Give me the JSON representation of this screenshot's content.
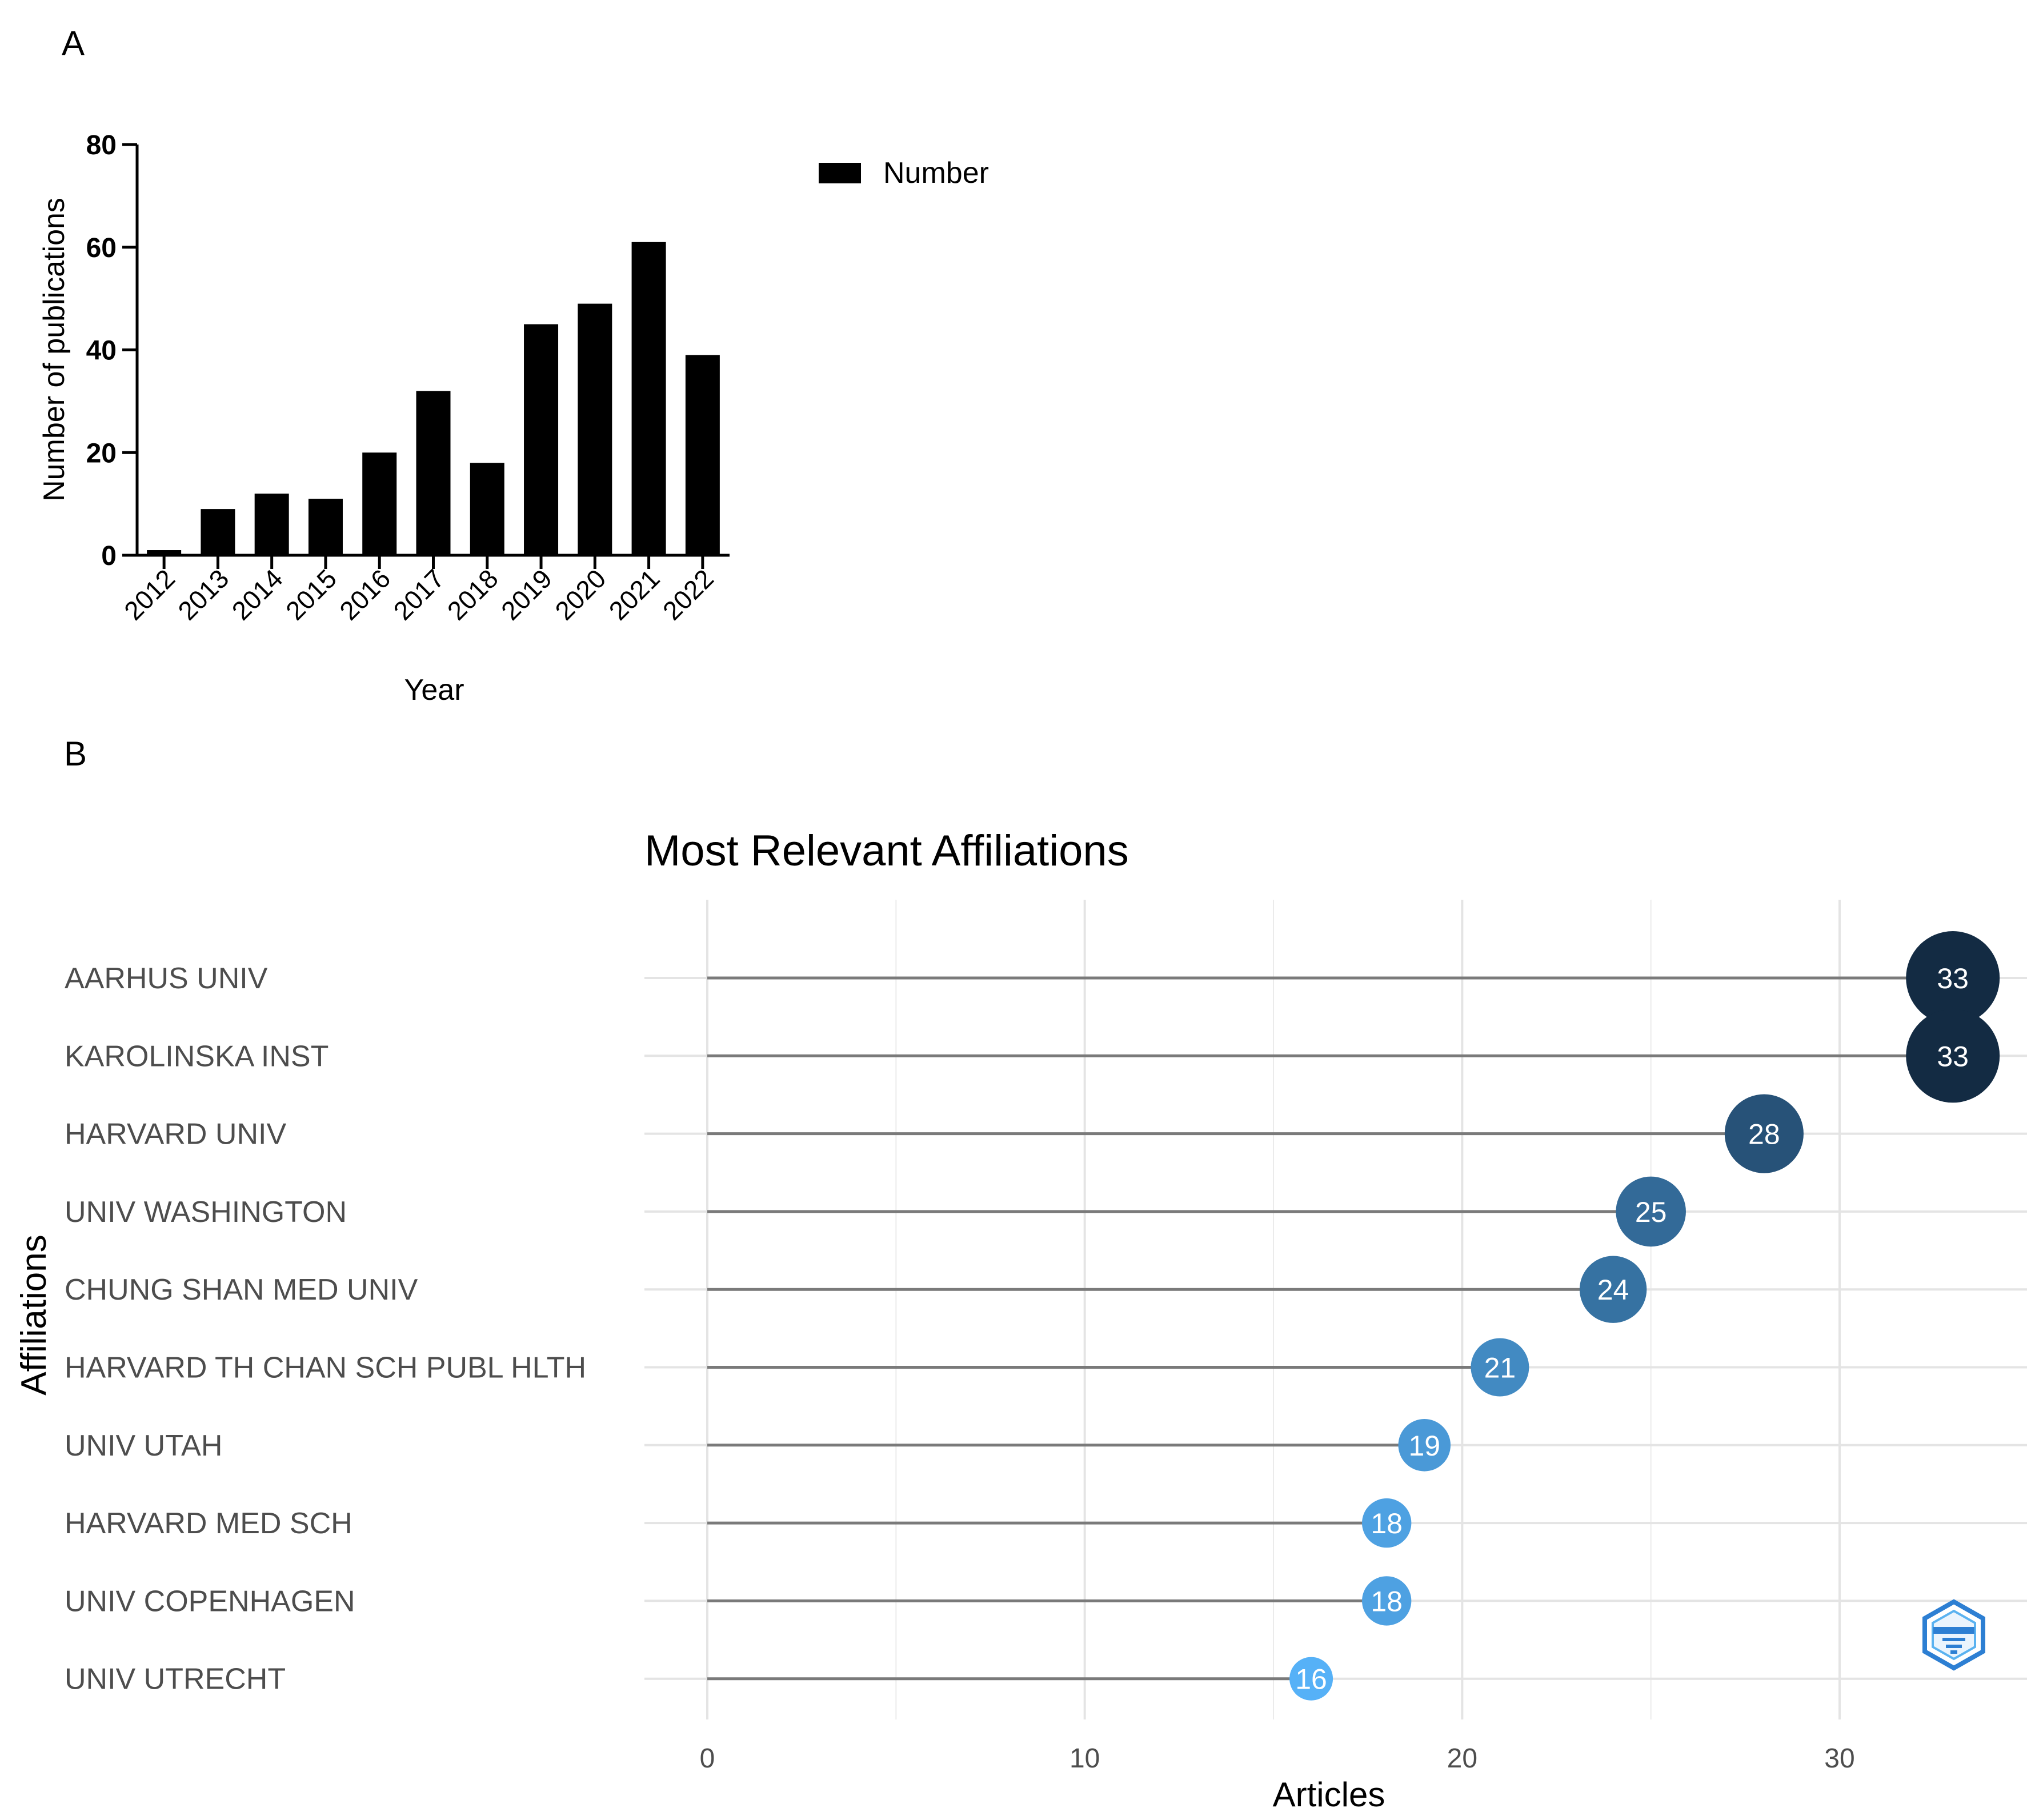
{
  "panels": {
    "a": "A",
    "b": "B"
  },
  "chart_data": [
    {
      "type": "bar",
      "title": "",
      "xlabel": "Year",
      "ylabel": "Number of publications",
      "ylim": [
        0,
        80
      ],
      "yticks": [
        0,
        20,
        40,
        60,
        80
      ],
      "categories": [
        "2012",
        "2013",
        "2014",
        "2015",
        "2016",
        "2017",
        "2018",
        "2019",
        "2020",
        "2021",
        "2022"
      ],
      "series": [
        {
          "name": "Number",
          "values": [
            1,
            9,
            12,
            11,
            20,
            32,
            18,
            45,
            49,
            61,
            39
          ]
        }
      ],
      "legend": {
        "entries": [
          "Number"
        ],
        "placement": "top-right"
      },
      "bar_color": "#000000"
    },
    {
      "type": "lollipop",
      "title": "Most Relevant Affiliations",
      "xlabel": "Articles",
      "ylabel": "Affiliations",
      "xlim": [
        0,
        34
      ],
      "xticks": [
        0,
        10,
        20,
        30
      ],
      "categories": [
        "AARHUS UNIV",
        "KAROLINSKA INST",
        "HARVARD UNIV",
        "UNIV WASHINGTON",
        "CHUNG SHAN MED UNIV",
        "HARVARD TH CHAN SCH PUBL HLTH",
        "UNIV UTAH",
        "HARVARD MED SCH",
        "UNIV COPENHAGEN",
        "UNIV UTRECHT"
      ],
      "values": [
        33,
        33,
        28,
        25,
        24,
        21,
        19,
        18,
        18,
        16
      ],
      "grid": true,
      "color_scale": {
        "low": "#56B1F7",
        "high": "#132B43"
      },
      "logo": "bibliometrix-logo"
    }
  ]
}
